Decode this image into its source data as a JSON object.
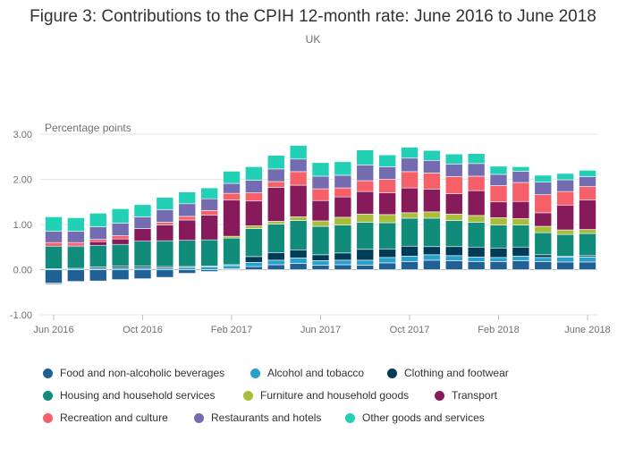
{
  "header": {
    "title": "Figure 3: Contributions to the CPIH 12-month rate: June 2016 to June 2018",
    "subtitle": "UK"
  },
  "chart_data": {
    "type": "bar",
    "stacked": true,
    "ylabel": "Percentage points",
    "ylim": [
      -1.0,
      3.0
    ],
    "yticks": [
      "-1.00",
      "0.00",
      "1.00",
      "2.00",
      "3.00"
    ],
    "grid": "horizontal",
    "legend_position": "bottom",
    "categories": [
      "Jun 2016",
      "Jul 2016",
      "Aug 2016",
      "Sep 2016",
      "Oct 2016",
      "Nov 2016",
      "Dec 2016",
      "Jan 2017",
      "Feb 2017",
      "Mar 2017",
      "Apr 2017",
      "May 2017",
      "Jun 2017",
      "Jul 2017",
      "Aug 2017",
      "Sep 2017",
      "Oct 2017",
      "Nov 2017",
      "Dec 2017",
      "Jan 2018",
      "Feb 2018",
      "Mar 2018",
      "Apr 2018",
      "May 2018",
      "June 2018"
    ],
    "xtick_labels": [
      {
        "index": 0,
        "label": "Jun 2016"
      },
      {
        "index": 4,
        "label": "Oct 2016"
      },
      {
        "index": 8,
        "label": "Feb 2017"
      },
      {
        "index": 12,
        "label": "Jun 2017"
      },
      {
        "index": 16,
        "label": "Oct 2017"
      },
      {
        "index": 20,
        "label": "Feb 2018"
      },
      {
        "index": 24,
        "label": "June 2018"
      }
    ],
    "series": [
      {
        "name": "Food and non-alcoholic beverages",
        "color": "#206095",
        "values": [
          -0.3,
          -0.26,
          -0.25,
          -0.22,
          -0.2,
          -0.17,
          -0.08,
          -0.04,
          0.02,
          0.07,
          0.11,
          0.14,
          0.1,
          0.11,
          0.1,
          0.15,
          0.18,
          0.21,
          0.2,
          0.18,
          0.18,
          0.2,
          0.18,
          0.17,
          0.17
        ]
      },
      {
        "name": "Alcohol and tobacco",
        "color": "#27a0cc",
        "values": [
          0.02,
          0.03,
          0.03,
          0.04,
          0.04,
          0.04,
          0.05,
          0.06,
          0.07,
          0.09,
          0.1,
          0.12,
          0.1,
          0.1,
          0.11,
          0.12,
          0.12,
          0.12,
          0.11,
          0.1,
          0.09,
          0.1,
          0.09,
          0.11,
          0.11
        ]
      },
      {
        "name": "Clothing and footwear",
        "color": "#003c57",
        "values": [
          -0.02,
          0.0,
          0.03,
          0.04,
          0.04,
          0.03,
          0.02,
          0.02,
          0.02,
          0.13,
          0.17,
          0.18,
          0.13,
          0.16,
          0.24,
          0.19,
          0.22,
          0.18,
          0.2,
          0.22,
          0.21,
          0.2,
          0.06,
          0.02,
          0.03
        ]
      },
      {
        "name": "Housing and household services",
        "color": "#118c7b",
        "values": [
          0.5,
          0.48,
          0.48,
          0.48,
          0.55,
          0.57,
          0.58,
          0.58,
          0.59,
          0.62,
          0.63,
          0.65,
          0.63,
          0.62,
          0.6,
          0.58,
          0.62,
          0.63,
          0.58,
          0.55,
          0.51,
          0.49,
          0.49,
          0.48,
          0.49
        ]
      },
      {
        "name": "Furniture and household goods",
        "color": "#a8bd3a",
        "values": [
          0.0,
          0.0,
          0.0,
          0.0,
          0.0,
          0.0,
          0.0,
          0.0,
          0.04,
          0.06,
          0.06,
          0.08,
          0.12,
          0.17,
          0.18,
          0.18,
          0.12,
          0.14,
          0.14,
          0.15,
          0.16,
          0.14,
          0.14,
          0.1,
          0.09
        ]
      },
      {
        "name": "Transport",
        "color": "#871a5b",
        "values": [
          0.0,
          0.03,
          0.08,
          0.12,
          0.28,
          0.35,
          0.45,
          0.55,
          0.8,
          0.55,
          0.75,
          0.7,
          0.45,
          0.45,
          0.5,
          0.48,
          0.55,
          0.5,
          0.45,
          0.55,
          0.35,
          0.38,
          0.3,
          0.55,
          0.65
        ]
      },
      {
        "name": "Recreation and culture",
        "color": "#f66068",
        "values": [
          0.08,
          0.06,
          0.05,
          0.07,
          0.0,
          0.06,
          0.08,
          0.1,
          0.15,
          0.18,
          0.13,
          0.3,
          0.26,
          0.2,
          0.24,
          0.3,
          0.36,
          0.36,
          0.38,
          0.32,
          0.36,
          0.42,
          0.4,
          0.3,
          0.3
        ]
      },
      {
        "name": "Restaurants and hotels",
        "color": "#746cb1",
        "values": [
          0.25,
          0.25,
          0.28,
          0.28,
          0.26,
          0.28,
          0.28,
          0.26,
          0.22,
          0.28,
          0.28,
          0.28,
          0.28,
          0.28,
          0.35,
          0.28,
          0.3,
          0.28,
          0.28,
          0.28,
          0.25,
          0.25,
          0.28,
          0.26,
          0.22
        ]
      },
      {
        "name": "Other goods and services",
        "color": "#22d0b6",
        "values": [
          0.32,
          0.3,
          0.3,
          0.32,
          0.27,
          0.27,
          0.26,
          0.24,
          0.27,
          0.3,
          0.3,
          0.3,
          0.3,
          0.3,
          0.33,
          0.26,
          0.24,
          0.22,
          0.22,
          0.22,
          0.18,
          0.1,
          0.15,
          0.14,
          0.14
        ]
      }
    ]
  }
}
